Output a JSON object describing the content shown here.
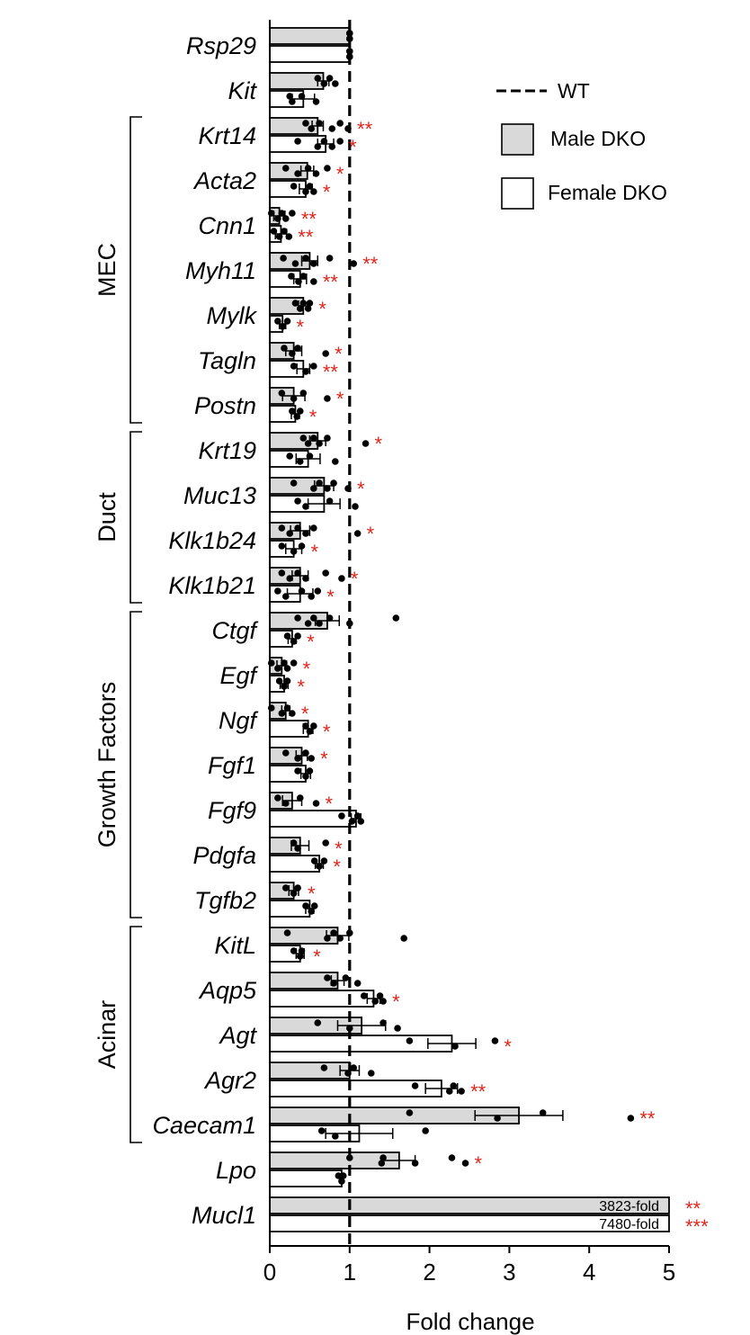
{
  "chart_data": {
    "type": "bar",
    "orientation": "horizontal",
    "xlabel": "Fold change",
    "xlim": [
      0,
      5
    ],
    "xticks": [
      "0",
      "1",
      "2",
      "3",
      "4",
      "5"
    ],
    "reference_line": {
      "value": 1,
      "label": "WT",
      "style": "dashed"
    },
    "legend": {
      "placement": "top-right",
      "items": [
        {
          "label": "WT",
          "kind": "dashed-line"
        },
        {
          "label": "Male DKO",
          "kind": "box",
          "color": "#d9d9d9"
        },
        {
          "label": "Female DKO",
          "kind": "box",
          "color": "#ffffff"
        }
      ]
    },
    "series": [
      {
        "name": "Male DKO",
        "color": "#d9d9d9"
      },
      {
        "name": "Female DKO",
        "color": "#ffffff"
      }
    ],
    "groups": [
      {
        "label": "MEC",
        "from": 2,
        "to": 8
      },
      {
        "label": "Duct",
        "from": 9,
        "to": 12
      },
      {
        "label": "Growth Factors",
        "from": 13,
        "to": 19
      },
      {
        "label": "Acinar",
        "from": 20,
        "to": 24
      }
    ],
    "genes": [
      {
        "name": "Rsp29",
        "male": {
          "mean": 1.0,
          "err": 0.0,
          "dots": [
            1.0,
            1.0,
            1.0,
            1.0
          ],
          "sig": ""
        },
        "female": {
          "mean": 1.0,
          "err": 0.0,
          "dots": [
            1.0,
            1.0,
            1.0,
            1.0
          ],
          "sig": ""
        }
      },
      {
        "name": "Kit",
        "male": {
          "mean": 0.67,
          "err": 0.07,
          "dots": [
            0.6,
            0.68,
            0.75,
            0.82
          ],
          "sig": ""
        },
        "female": {
          "mean": 0.42,
          "err": 0.14,
          "dots": [
            0.25,
            0.28,
            0.4,
            0.58
          ],
          "sig": ""
        }
      },
      {
        "name": "Krt14",
        "male": {
          "mean": 0.6,
          "err": 0.07,
          "dots": [
            0.45,
            0.52,
            0.62,
            0.78,
            0.88,
            0.98
          ],
          "sig": "**"
        },
        "female": {
          "mean": 0.7,
          "err": 0.1,
          "dots": [
            0.35,
            0.6,
            0.68,
            0.78,
            0.88
          ],
          "sig": "*"
        }
      },
      {
        "name": "Acta2",
        "male": {
          "mean": 0.47,
          "err": 0.08,
          "dots": [
            0.2,
            0.35,
            0.48,
            0.58,
            0.72
          ],
          "sig": "*"
        },
        "female": {
          "mean": 0.45,
          "err": 0.08,
          "dots": [
            0.3,
            0.45,
            0.5,
            0.55
          ],
          "sig": "*"
        }
      },
      {
        "name": "Cnn1",
        "male": {
          "mean": 0.12,
          "err": 0.07,
          "dots": [
            0.02,
            0.1,
            0.15,
            0.2,
            0.28
          ],
          "sig": "**"
        },
        "female": {
          "mean": 0.14,
          "err": 0.07,
          "dots": [
            0.05,
            0.12,
            0.18,
            0.24
          ],
          "sig": "**"
        }
      },
      {
        "name": "Myh11",
        "male": {
          "mean": 0.5,
          "err": 0.1,
          "dots": [
            0.17,
            0.32,
            0.45,
            0.55,
            0.75,
            1.05
          ],
          "sig": "**"
        },
        "female": {
          "mean": 0.38,
          "err": 0.08,
          "dots": [
            0.27,
            0.36,
            0.42,
            0.55
          ],
          "sig": "**"
        }
      },
      {
        "name": "Mylk",
        "male": {
          "mean": 0.42,
          "err": 0.06,
          "dots": [
            0.32,
            0.38,
            0.42,
            0.48,
            0.5
          ],
          "sig": "*"
        },
        "female": {
          "mean": 0.16,
          "err": 0.04,
          "dots": [
            0.1,
            0.16,
            0.22
          ],
          "sig": "*"
        }
      },
      {
        "name": "Tagln",
        "male": {
          "mean": 0.3,
          "err": 0.1,
          "dots": [
            0.18,
            0.28,
            0.35,
            0.7
          ],
          "sig": "*"
        },
        "female": {
          "mean": 0.42,
          "err": 0.08,
          "dots": [
            0.3,
            0.45,
            0.55
          ],
          "sig": "**"
        }
      },
      {
        "name": "Postn",
        "male": {
          "mean": 0.3,
          "err": 0.14,
          "dots": [
            0.15,
            0.3,
            0.42,
            0.72
          ],
          "sig": "*"
        },
        "female": {
          "mean": 0.32,
          "err": 0.05,
          "dots": [
            0.28,
            0.34,
            0.38
          ],
          "sig": "*"
        }
      },
      {
        "name": "Krt19",
        "male": {
          "mean": 0.6,
          "err": 0.1,
          "dots": [
            0.42,
            0.48,
            0.55,
            0.62,
            0.72,
            1.2
          ],
          "sig": "*"
        },
        "female": {
          "mean": 0.48,
          "err": 0.15,
          "dots": [
            0.25,
            0.38,
            0.5,
            0.82
          ],
          "sig": ""
        }
      },
      {
        "name": "Muc13",
        "male": {
          "mean": 0.68,
          "err": 0.12,
          "dots": [
            0.3,
            0.55,
            0.62,
            0.72,
            0.8,
            0.98
          ],
          "sig": "*"
        },
        "female": {
          "mean": 0.68,
          "err": 0.2,
          "dots": [
            0.35,
            0.45,
            0.75,
            1.07
          ],
          "sig": ""
        }
      },
      {
        "name": "Klk1b24",
        "male": {
          "mean": 0.38,
          "err": 0.12,
          "dots": [
            0.15,
            0.25,
            0.35,
            0.45,
            0.55,
            1.1
          ],
          "sig": "*"
        },
        "female": {
          "mean": 0.3,
          "err": 0.1,
          "dots": [
            0.15,
            0.3,
            0.4
          ],
          "sig": "*"
        }
      },
      {
        "name": "Klk1b21",
        "male": {
          "mean": 0.38,
          "err": 0.1,
          "dots": [
            0.15,
            0.25,
            0.35,
            0.45,
            0.7,
            0.9
          ],
          "sig": "*"
        },
        "female": {
          "mean": 0.38,
          "err": 0.16,
          "dots": [
            0.1,
            0.2,
            0.4,
            0.52,
            0.6
          ],
          "sig": "*"
        }
      },
      {
        "name": "Ctgf",
        "male": {
          "mean": 0.72,
          "err": 0.15,
          "dots": [
            0.35,
            0.48,
            0.55,
            0.62,
            0.75,
            1.0,
            1.58
          ],
          "sig": ""
        },
        "female": {
          "mean": 0.28,
          "err": 0.05,
          "dots": [
            0.22,
            0.3,
            0.35
          ],
          "sig": "*"
        }
      },
      {
        "name": "Egf",
        "male": {
          "mean": 0.15,
          "err": 0.06,
          "dots": [
            0.02,
            0.1,
            0.18,
            0.22,
            0.3
          ],
          "sig": "*"
        },
        "female": {
          "mean": 0.18,
          "err": 0.05,
          "dots": [
            0.12,
            0.18,
            0.22
          ],
          "sig": "*"
        }
      },
      {
        "name": "Ngf",
        "male": {
          "mean": 0.2,
          "err": 0.05,
          "dots": [
            0.02,
            0.15,
            0.22,
            0.28
          ],
          "sig": "*"
        },
        "female": {
          "mean": 0.48,
          "err": 0.06,
          "dots": [
            0.45,
            0.5,
            0.55
          ],
          "sig": "*"
        }
      },
      {
        "name": "Fgf1",
        "male": {
          "mean": 0.4,
          "err": 0.07,
          "dots": [
            0.2,
            0.35,
            0.45,
            0.52
          ],
          "sig": "*"
        },
        "female": {
          "mean": 0.45,
          "err": 0.06,
          "dots": [
            0.35,
            0.45,
            0.5
          ],
          "sig": ""
        }
      },
      {
        "name": "Fgf9",
        "male": {
          "mean": 0.28,
          "err": 0.12,
          "dots": [
            0.1,
            0.2,
            0.38,
            0.58
          ],
          "sig": "*"
        },
        "female": {
          "mean": 1.08,
          "err": 0.06,
          "dots": [
            0.9,
            1.03,
            1.1,
            1.14
          ],
          "sig": ""
        }
      },
      {
        "name": "Pdgfa",
        "male": {
          "mean": 0.38,
          "err": 0.11,
          "dots": [
            0.3,
            0.35,
            0.7
          ],
          "sig": "*"
        },
        "female": {
          "mean": 0.62,
          "err": 0.05,
          "dots": [
            0.56,
            0.62,
            0.68
          ],
          "sig": "*"
        }
      },
      {
        "name": "Tgfb2",
        "male": {
          "mean": 0.3,
          "err": 0.06,
          "dots": [
            0.2,
            0.3,
            0.35
          ],
          "sig": "*"
        },
        "female": {
          "mean": 0.5,
          "err": 0.05,
          "dots": [
            0.45,
            0.52,
            0.56
          ],
          "sig": ""
        }
      },
      {
        "name": "KitL",
        "male": {
          "mean": 0.85,
          "err": 0.14,
          "dots": [
            0.22,
            0.72,
            0.8,
            0.88,
            1.0,
            1.68
          ],
          "sig": ""
        },
        "female": {
          "mean": 0.38,
          "err": 0.05,
          "dots": [
            0.3,
            0.38,
            0.4
          ],
          "sig": "*"
        }
      },
      {
        "name": "Aqp5",
        "male": {
          "mean": 0.85,
          "err": 0.08,
          "dots": [
            0.72,
            0.8,
            0.95,
            1.1
          ],
          "sig": ""
        },
        "female": {
          "mean": 1.3,
          "err": 0.08,
          "dots": [
            1.18,
            1.32,
            1.38,
            1.42
          ],
          "sig": "*"
        }
      },
      {
        "name": "Agt",
        "male": {
          "mean": 1.15,
          "err": 0.3,
          "dots": [
            0.6,
            1.0,
            1.42,
            1.6
          ],
          "sig": ""
        },
        "female": {
          "mean": 2.28,
          "err": 0.3,
          "dots": [
            1.75,
            2.32,
            2.82
          ],
          "sig": "*"
        }
      },
      {
        "name": "Agr2",
        "male": {
          "mean": 1.0,
          "err": 0.12,
          "dots": [
            0.68,
            0.98,
            1.05,
            1.27
          ],
          "sig": ""
        },
        "female": {
          "mean": 2.15,
          "err": 0.2,
          "dots": [
            1.82,
            2.25,
            2.3,
            2.4
          ],
          "sig": "**"
        }
      },
      {
        "name": "Caecam1",
        "male": {
          "mean": 3.12,
          "err": 0.55,
          "dots": [
            1.75,
            2.85,
            3.42,
            4.52
          ],
          "sig": "**"
        },
        "female": {
          "mean": 1.12,
          "err": 0.42,
          "dots": [
            0.65,
            0.82,
            1.95
          ],
          "sig": ""
        }
      },
      {
        "name": "Lpo",
        "male": {
          "mean": 1.62,
          "err": 0.2,
          "dots": [
            1.0,
            1.4,
            1.42,
            1.82,
            2.28,
            2.45
          ],
          "sig": "*"
        },
        "female": {
          "mean": 0.9,
          "err": 0.02,
          "dots": [
            0.86,
            0.9,
            0.92
          ],
          "sig": ""
        }
      },
      {
        "name": "Mucl1",
        "male": {
          "mean": 3823,
          "err": 0,
          "dots": [],
          "sig": "**",
          "label": "3823-fold"
        },
        "female": {
          "mean": 7480,
          "err": 0,
          "dots": [],
          "sig": "***",
          "label": "7480-fold"
        }
      }
    ]
  }
}
